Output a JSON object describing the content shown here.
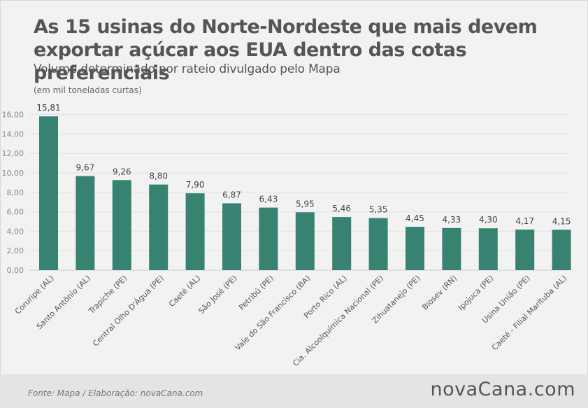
{
  "title": "As 15 usinas do Norte-Nordeste que mais devem exportar açúcar aos EUA dentro das cotas preferenciais",
  "subtitle": "Volume determinado por rateio divulgado pelo Mapa",
  "unit_label": "(em mil toneladas curtas)",
  "source": "Fonte: Mapa / Elaboração: novaCana.com",
  "logo": {
    "prefix": "novaCana",
    "dot": ".",
    "suffix": "com"
  },
  "colors": {
    "bar": "#378270",
    "text": "#555555",
    "grid": "#e0e0e0"
  },
  "chart_data": {
    "type": "bar",
    "categories": [
      "Coruripe (AL)",
      "Santo Antônio (AL)",
      "Trapiche (PE)",
      "Central Olho D'Água (PE)",
      "Caeté (AL)",
      "São José (PE)",
      "Petribú (PE)",
      "Vale do São Francisco (BA)",
      "Porto Rico (AL)",
      "Cia. Alcoolquímica Nacional (PE)",
      "Zihuatanejo (PE)",
      "Biosev (RN)",
      "Ipojuca (PE)",
      "Usina União (PE)",
      "Caeté - Filial Marituba (AL)"
    ],
    "values": [
      15.81,
      9.67,
      9.26,
      8.8,
      7.9,
      6.87,
      6.43,
      5.95,
      5.46,
      5.35,
      4.45,
      4.33,
      4.3,
      4.17,
      4.15
    ],
    "value_labels": [
      "15,81",
      "9,67",
      "9,26",
      "8,80",
      "7,90",
      "6,87",
      "6,43",
      "5,95",
      "5,46",
      "5,35",
      "4,45",
      "4,33",
      "4,30",
      "4,17",
      "4,15"
    ],
    "yticks": [
      "0,00",
      "2,00",
      "4,00",
      "6,00",
      "8,00",
      "10,00",
      "12,00",
      "14,00",
      "16,00"
    ],
    "ylim": [
      0,
      16.5
    ],
    "grid": true,
    "legend": "none"
  }
}
